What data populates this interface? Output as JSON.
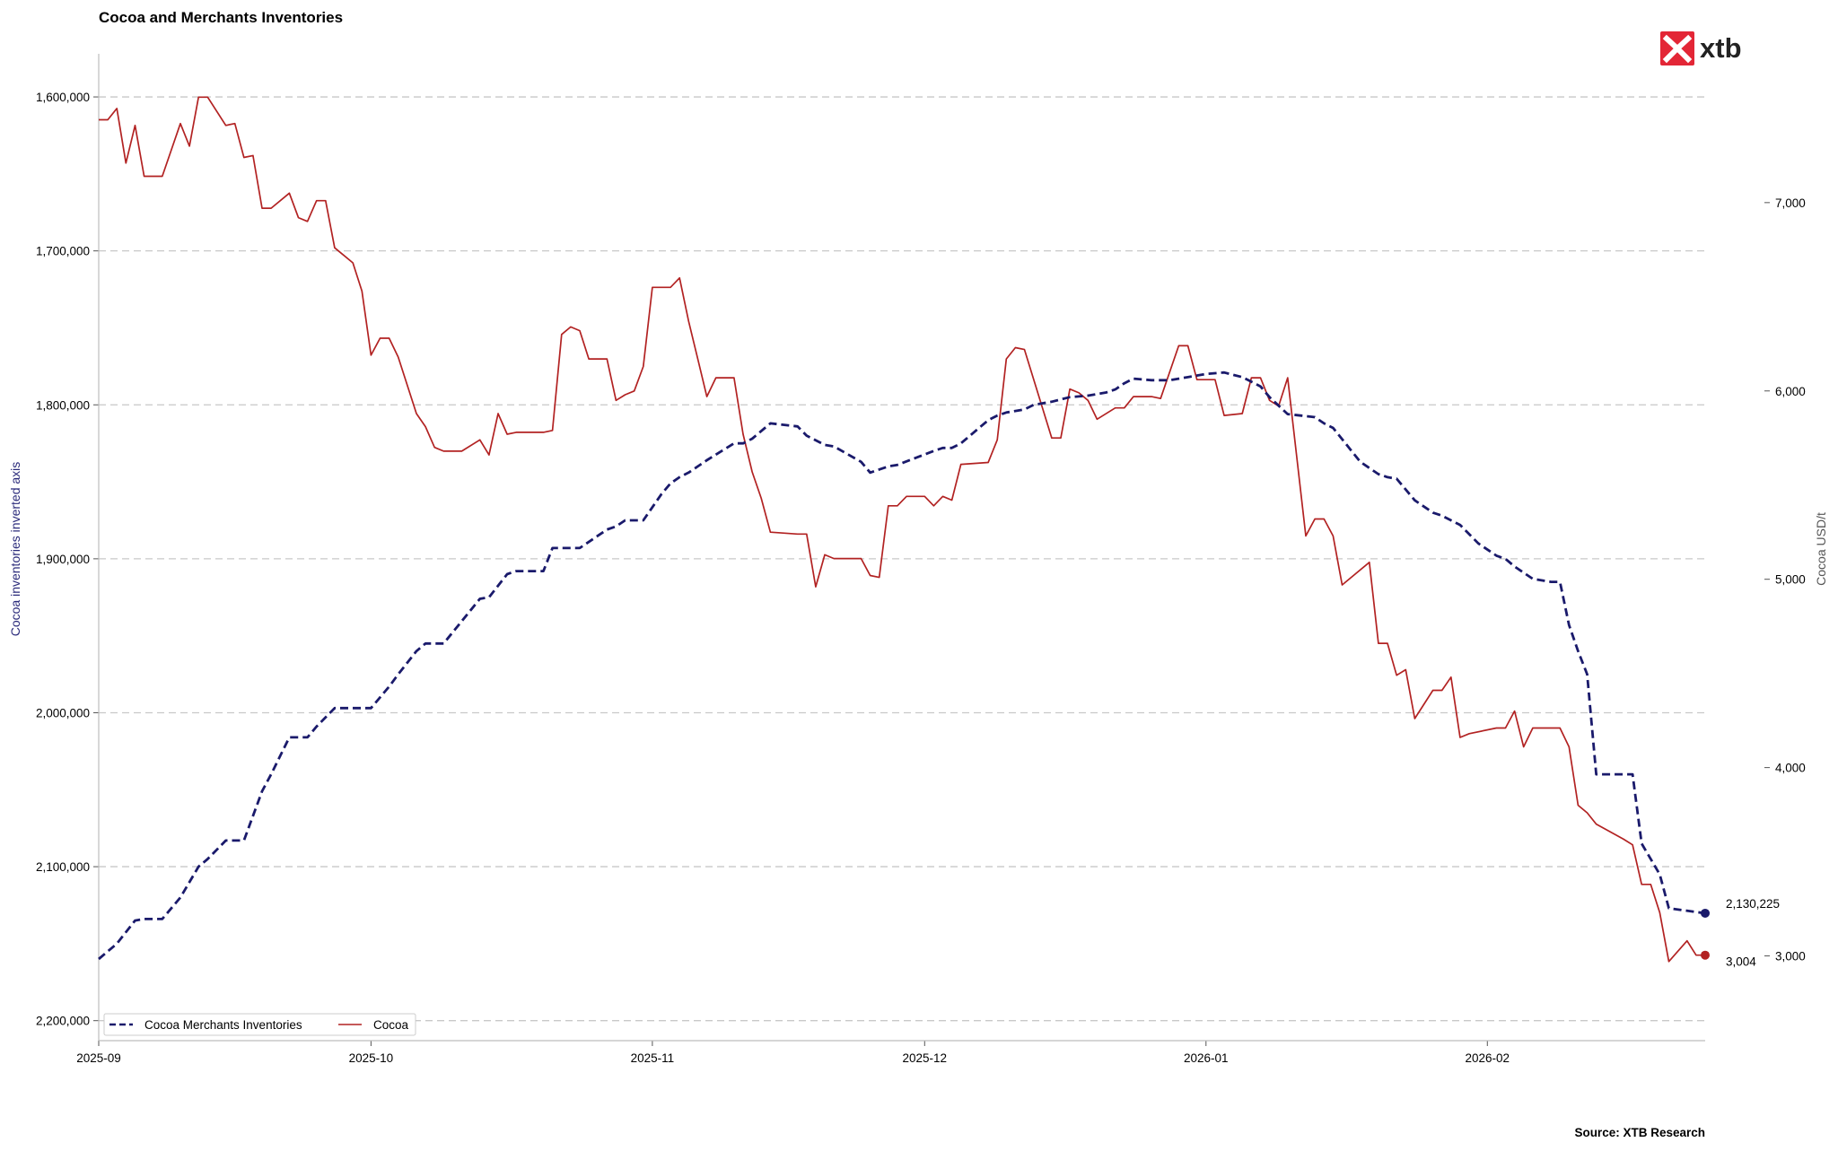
{
  "chart_data": {
    "type": "line",
    "title": "Cocoa and Merchants Inventories",
    "source": "Source: XTB Research",
    "logo_text": "xtb",
    "colors": {
      "inventories": "#1a1a6b",
      "cocoa": "#b22222",
      "logo": "#e32636",
      "grid": "#c8c8c8"
    },
    "x_range": [
      "2025-09-01",
      "2026-02-25"
    ],
    "x_ticks": [
      "2025-09",
      "2025-10",
      "2025-11",
      "2025-12",
      "2026-01",
      "2026-02"
    ],
    "x_tick_dates": [
      "2025-09-01",
      "2025-10-01",
      "2025-11-01",
      "2025-12-01",
      "2026-01-01",
      "2026-02-01"
    ],
    "left_axis": {
      "label": "Cocoa inventories inverted axis",
      "inverted": true,
      "range": [
        1572000,
        2213000
      ],
      "ticks": [
        1600000,
        1700000,
        1800000,
        1900000,
        2000000,
        2100000,
        2200000
      ],
      "tick_labels": [
        "1,600,000",
        "1,700,000",
        "1,800,000",
        "1,900,000",
        "2,000,000",
        "2,100,000",
        "2,200,000"
      ]
    },
    "right_axis": {
      "label": "Cocoa USD/t",
      "range": [
        2550,
        7790
      ],
      "ticks": [
        3000,
        4000,
        5000,
        6000,
        7000
      ],
      "tick_labels": [
        "3,000",
        "4,000",
        "5,000",
        "6,000",
        "7,000"
      ]
    },
    "grid": "horizontal dashed",
    "legend": {
      "placement": "bottom-left"
    },
    "series": [
      {
        "name": "Cocoa Merchants Inventories",
        "axis": "left",
        "style": "dashed",
        "last_label": "2,130,225",
        "x": [
          "2025-09-01",
          "2025-09-03",
          "2025-09-05",
          "2025-09-06",
          "2025-09-08",
          "2025-09-10",
          "2025-09-12",
          "2025-09-13",
          "2025-09-15",
          "2025-09-16",
          "2025-09-17",
          "2025-09-19",
          "2025-09-20",
          "2025-09-22",
          "2025-09-24",
          "2025-09-25",
          "2025-09-27",
          "2025-09-29",
          "2025-10-01",
          "2025-10-03",
          "2025-10-04",
          "2025-10-06",
          "2025-10-07",
          "2025-10-09",
          "2025-10-13",
          "2025-10-14",
          "2025-10-16",
          "2025-10-17",
          "2025-10-20",
          "2025-10-21",
          "2025-10-23",
          "2025-10-24",
          "2025-10-27",
          "2025-10-28",
          "2025-10-29",
          "2025-10-30",
          "2025-10-31",
          "2025-11-02",
          "2025-11-03",
          "2025-11-04",
          "2025-11-05",
          "2025-11-06",
          "2025-11-07",
          "2025-11-10",
          "2025-11-11",
          "2025-11-12",
          "2025-11-14",
          "2025-11-17",
          "2025-11-18",
          "2025-11-20",
          "2025-11-21",
          "2025-11-24",
          "2025-11-25",
          "2025-11-27",
          "2025-11-28",
          "2025-12-02",
          "2025-12-03",
          "2025-12-04",
          "2025-12-05",
          "2025-12-08",
          "2025-12-09",
          "2025-12-10",
          "2025-12-12",
          "2025-12-13",
          "2025-12-15",
          "2025-12-17",
          "2025-12-19",
          "2025-12-21",
          "2025-12-22",
          "2025-12-23",
          "2025-12-24",
          "2025-12-26",
          "2025-12-28",
          "2025-12-30",
          "2026-01-01",
          "2026-01-03",
          "2026-01-05",
          "2026-01-06",
          "2026-01-07",
          "2026-01-08",
          "2026-01-10",
          "2026-01-13",
          "2026-01-14",
          "2026-01-15",
          "2026-01-18",
          "2026-01-20",
          "2026-01-21",
          "2026-01-22",
          "2026-01-24",
          "2026-01-26",
          "2026-01-27",
          "2026-01-28",
          "2026-01-29",
          "2026-01-31",
          "2026-02-02",
          "2026-02-03",
          "2026-02-04",
          "2026-02-06",
          "2026-02-08",
          "2026-02-09",
          "2026-02-10",
          "2026-02-11",
          "2026-02-12",
          "2026-02-13",
          "2026-02-17",
          "2026-02-18",
          "2026-02-20",
          "2026-02-21",
          "2026-02-25"
        ],
        "values": [
          2160000,
          2150000,
          2135000,
          2134000,
          2134000,
          2120000,
          2100000,
          2095000,
          2083000,
          2083000,
          2083000,
          2051000,
          2040000,
          2016000,
          2016000,
          2009000,
          1997000,
          1997000,
          1997000,
          1983000,
          1975000,
          1960000,
          1955000,
          1955000,
          1926000,
          1925000,
          1910000,
          1908000,
          1908000,
          1893000,
          1893000,
          1893000,
          1881000,
          1879000,
          1875000,
          1875000,
          1875000,
          1858000,
          1851000,
          1847000,
          1844000,
          1840000,
          1836000,
          1825000,
          1825000,
          1822000,
          1812000,
          1814000,
          1820000,
          1826000,
          1827000,
          1837000,
          1844000,
          1840000,
          1839000,
          1830000,
          1828000,
          1828000,
          1825000,
          1810000,
          1807000,
          1805000,
          1803000,
          1800000,
          1798000,
          1795000,
          1794000,
          1792000,
          1790000,
          1786000,
          1783000,
          1784000,
          1784000,
          1782000,
          1780000,
          1779000,
          1782000,
          1785000,
          1788000,
          1795000,
          1806000,
          1808000,
          1812000,
          1815000,
          1837000,
          1845000,
          1847000,
          1848000,
          1862000,
          1870000,
          1872000,
          1875000,
          1878000,
          1890000,
          1898000,
          1900000,
          1905000,
          1913000,
          1915000,
          1915000,
          1943000,
          1960000,
          1975000,
          2040000,
          2040000,
          2085000,
          2105000,
          2127000,
          2130225
        ]
      },
      {
        "name": "Cocoa",
        "axis": "right",
        "style": "solid",
        "last_label": "3,004",
        "x": [
          "2025-09-01",
          "2025-09-02",
          "2025-09-03",
          "2025-09-04",
          "2025-09-05",
          "2025-09-06",
          "2025-09-08",
          "2025-09-09",
          "2025-09-10",
          "2025-09-11",
          "2025-09-12",
          "2025-09-13",
          "2025-09-15",
          "2025-09-16",
          "2025-09-17",
          "2025-09-18",
          "2025-09-19",
          "2025-09-20",
          "2025-09-22",
          "2025-09-23",
          "2025-09-24",
          "2025-09-25",
          "2025-09-26",
          "2025-09-27",
          "2025-09-29",
          "2025-09-30",
          "2025-10-01",
          "2025-10-02",
          "2025-10-03",
          "2025-10-04",
          "2025-10-06",
          "2025-10-07",
          "2025-10-08",
          "2025-10-09",
          "2025-10-10",
          "2025-10-11",
          "2025-10-13",
          "2025-10-14",
          "2025-10-15",
          "2025-10-16",
          "2025-10-17",
          "2025-10-20",
          "2025-10-21",
          "2025-10-22",
          "2025-10-23",
          "2025-10-24",
          "2025-10-25",
          "2025-10-27",
          "2025-10-28",
          "2025-10-29",
          "2025-10-30",
          "2025-10-31",
          "2025-11-01",
          "2025-11-03",
          "2025-11-04",
          "2025-11-05",
          "2025-11-06",
          "2025-11-07",
          "2025-11-08",
          "2025-11-10",
          "2025-11-11",
          "2025-11-12",
          "2025-11-13",
          "2025-11-14",
          "2025-11-17",
          "2025-11-18",
          "2025-11-19",
          "2025-11-20",
          "2025-11-21",
          "2025-11-24",
          "2025-11-25",
          "2025-11-26",
          "2025-11-27",
          "2025-11-28",
          "2025-11-29",
          "2025-12-01",
          "2025-12-02",
          "2025-12-03",
          "2025-12-04",
          "2025-12-05",
          "2025-12-08",
          "2025-12-09",
          "2025-12-10",
          "2025-12-11",
          "2025-12-12",
          "2025-12-15",
          "2025-12-16",
          "2025-12-17",
          "2025-12-18",
          "2025-12-19",
          "2025-12-20",
          "2025-12-22",
          "2025-12-23",
          "2025-12-24",
          "2025-12-26",
          "2025-12-27",
          "2025-12-29",
          "2025-12-30",
          "2025-12-31",
          "2026-01-02",
          "2026-01-03",
          "2026-01-05",
          "2026-01-06",
          "2026-01-07",
          "2026-01-08",
          "2026-01-09",
          "2026-01-10",
          "2026-01-12",
          "2026-01-13",
          "2026-01-14",
          "2026-01-15",
          "2026-01-16",
          "2026-01-19",
          "2026-01-20",
          "2026-01-21",
          "2026-01-22",
          "2026-01-23",
          "2026-01-24",
          "2026-01-26",
          "2026-01-27",
          "2026-01-28",
          "2026-01-29",
          "2026-01-30",
          "2026-02-02",
          "2026-02-03",
          "2026-02-04",
          "2026-02-05",
          "2026-02-06",
          "2026-02-09",
          "2026-02-10",
          "2026-02-11",
          "2026-02-12",
          "2026-02-13",
          "2026-02-16",
          "2026-02-17",
          "2026-02-18",
          "2026-02-19",
          "2026-02-20",
          "2026-02-21",
          "2026-02-23",
          "2026-02-24",
          "2026-02-25"
        ],
        "values": [
          7440,
          7440,
          7500,
          7210,
          7410,
          7140,
          7140,
          7280,
          7420,
          7300,
          7560,
          7560,
          7410,
          7420,
          7240,
          7250,
          6970,
          6970,
          7050,
          6920,
          6900,
          7010,
          7010,
          6760,
          6680,
          6530,
          6190,
          6280,
          6280,
          6180,
          5880,
          5810,
          5700,
          5680,
          5680,
          5680,
          5740,
          5660,
          5880,
          5770,
          5780,
          5780,
          5790,
          6300,
          6340,
          6320,
          6170,
          6170,
          5950,
          5980,
          6000,
          6130,
          6550,
          6550,
          6600,
          6370,
          6170,
          5970,
          6070,
          6070,
          5770,
          5570,
          5430,
          5250,
          5240,
          5240,
          4960,
          5130,
          5110,
          5110,
          5020,
          5010,
          5390,
          5390,
          5440,
          5440,
          5390,
          5440,
          5420,
          5610,
          5620,
          5740,
          6170,
          6230,
          6220,
          5750,
          5750,
          6010,
          5990,
          5950,
          5850,
          5910,
          5910,
          5970,
          5970,
          5960,
          6240,
          6240,
          6060,
          6060,
          5870,
          5880,
          6070,
          6070,
          5950,
          5920,
          6070,
          5230,
          5320,
          5320,
          5230,
          4970,
          5090,
          4660,
          4660,
          4490,
          4520,
          4260,
          4410,
          4410,
          4480,
          4160,
          4180,
          4210,
          4210,
          4300,
          4110,
          4210,
          4210,
          4110,
          3800,
          3760,
          3700,
          3620,
          3590,
          3380,
          3380,
          3230,
          2970,
          3080,
          3004,
          3004
        ]
      }
    ]
  }
}
